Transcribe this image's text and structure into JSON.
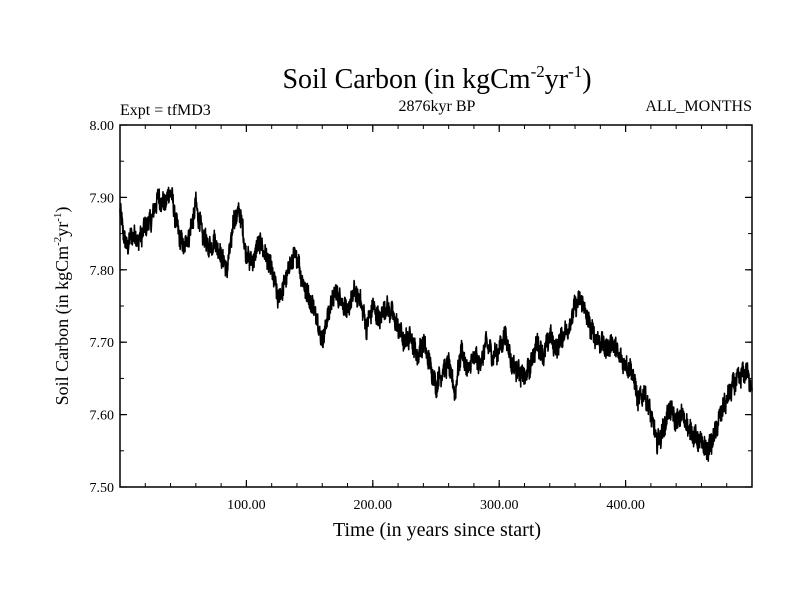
{
  "chart_data": {
    "type": "line",
    "title": {
      "text": "Soil Carbon (in kgCm",
      "sup1": "-2",
      "mid": "yr",
      "sup2": "-1",
      "end": ")"
    },
    "subtitle_left": "Expt = tfMD3",
    "subtitle_center": "2876kyr BP",
    "subtitle_right": "ALL_MONTHS",
    "xlabel": "Time (in years since start)",
    "ylabel": {
      "text": "Soil Carbon (in kgCm",
      "sup1": "-2",
      "mid": "yr",
      "sup2": "-1",
      "end": ")"
    },
    "xlim": [
      0,
      500
    ],
    "ylim": [
      7.5,
      8.0
    ],
    "x_ticks": [
      100,
      200,
      300,
      400
    ],
    "x_tick_labels": [
      "100.00",
      "200.00",
      "300.00",
      "400.00"
    ],
    "y_ticks": [
      7.5,
      7.6,
      7.7,
      7.8,
      7.9,
      8.0
    ],
    "y_tick_labels": [
      "7.50",
      "7.60",
      "7.70",
      "7.80",
      "7.90",
      "8.00"
    ],
    "grid": false,
    "series": [
      {
        "name": "Soil Carbon",
        "color": "#000000",
        "x": [
          0,
          5,
          10,
          15,
          20,
          25,
          30,
          35,
          40,
          45,
          50,
          55,
          60,
          65,
          70,
          75,
          80,
          85,
          90,
          95,
          100,
          105,
          110,
          115,
          120,
          125,
          130,
          135,
          140,
          145,
          150,
          155,
          160,
          165,
          170,
          175,
          180,
          185,
          190,
          195,
          200,
          205,
          210,
          215,
          220,
          225,
          230,
          235,
          240,
          245,
          250,
          255,
          260,
          265,
          270,
          275,
          280,
          285,
          290,
          295,
          300,
          305,
          310,
          315,
          320,
          325,
          330,
          335,
          340,
          345,
          350,
          355,
          360,
          365,
          370,
          375,
          380,
          385,
          390,
          395,
          400,
          405,
          410,
          415,
          420,
          425,
          430,
          435,
          440,
          445,
          450,
          455,
          460,
          465,
          470,
          475,
          480,
          485,
          490,
          495,
          500
        ],
        "y": [
          7.88,
          7.83,
          7.85,
          7.84,
          7.86,
          7.87,
          7.9,
          7.89,
          7.91,
          7.86,
          7.83,
          7.85,
          7.89,
          7.85,
          7.83,
          7.84,
          7.82,
          7.8,
          7.87,
          7.88,
          7.82,
          7.81,
          7.84,
          7.82,
          7.8,
          7.76,
          7.78,
          7.81,
          7.82,
          7.78,
          7.76,
          7.74,
          7.7,
          7.74,
          7.77,
          7.76,
          7.74,
          7.77,
          7.76,
          7.72,
          7.75,
          7.73,
          7.75,
          7.74,
          7.72,
          7.7,
          7.71,
          7.68,
          7.7,
          7.67,
          7.64,
          7.66,
          7.67,
          7.63,
          7.69,
          7.66,
          7.68,
          7.67,
          7.7,
          7.68,
          7.69,
          7.71,
          7.67,
          7.66,
          7.65,
          7.67,
          7.7,
          7.68,
          7.71,
          7.69,
          7.71,
          7.72,
          7.75,
          7.76,
          7.73,
          7.71,
          7.7,
          7.69,
          7.7,
          7.68,
          7.67,
          7.66,
          7.62,
          7.63,
          7.6,
          7.56,
          7.58,
          7.61,
          7.59,
          7.6,
          7.58,
          7.57,
          7.56,
          7.55,
          7.57,
          7.6,
          7.62,
          7.64,
          7.65,
          7.66,
          7.64
        ]
      }
    ]
  }
}
